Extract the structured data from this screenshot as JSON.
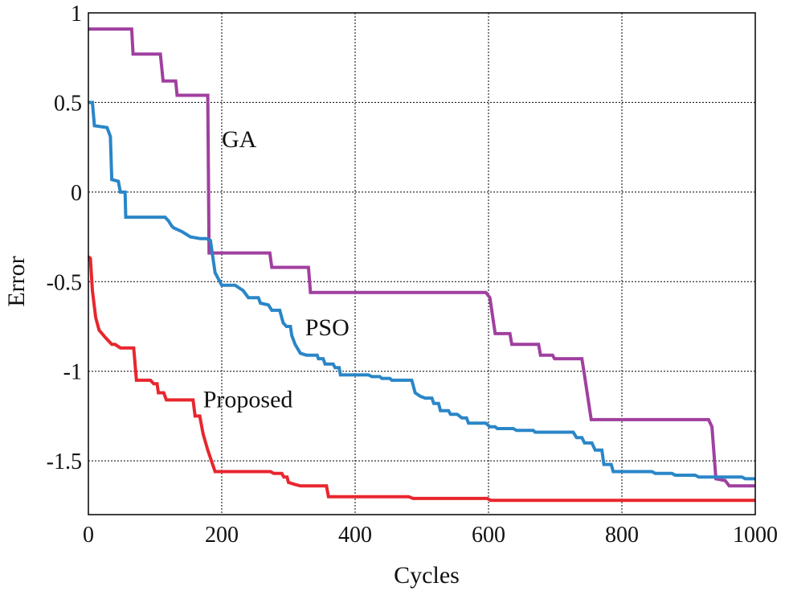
{
  "chart_data": {
    "type": "line",
    "title": "",
    "xlabel": "Cycles",
    "ylabel": "Error",
    "xlim": [
      0,
      1000
    ],
    "ylim": [
      -1.8,
      1
    ],
    "grid": true,
    "x_ticks": [
      0,
      200,
      400,
      600,
      800,
      1000
    ],
    "x_tick_labels": [
      "0",
      "200",
      "400",
      "600",
      "800",
      "1000"
    ],
    "y_ticks": [
      1,
      0.5,
      0,
      -0.5,
      -1,
      -1.5
    ],
    "y_tick_labels": [
      "1",
      "0.5",
      "0",
      "-0.5",
      "-1",
      "-1.5"
    ],
    "series": [
      {
        "name": "GA",
        "color": "#a0409f",
        "label_at": [
          200,
          0.25
        ],
        "points": [
          [
            0,
            0.91
          ],
          [
            65,
            0.91
          ],
          [
            67,
            0.77
          ],
          [
            108,
            0.77
          ],
          [
            112,
            0.62
          ],
          [
            131,
            0.62
          ],
          [
            133,
            0.54
          ],
          [
            179,
            0.54
          ],
          [
            181,
            -0.34
          ],
          [
            272,
            -0.34
          ],
          [
            275,
            -0.42
          ],
          [
            330,
            -0.42
          ],
          [
            333,
            -0.56
          ],
          [
            596,
            -0.56
          ],
          [
            602,
            -0.59
          ],
          [
            610,
            -0.79
          ],
          [
            632,
            -0.79
          ],
          [
            635,
            -0.85
          ],
          [
            675,
            -0.85
          ],
          [
            678,
            -0.91
          ],
          [
            696,
            -0.91
          ],
          [
            699,
            -0.93
          ],
          [
            740,
            -0.93
          ],
          [
            743,
            -1.0
          ],
          [
            754,
            -1.27
          ],
          [
            930,
            -1.27
          ],
          [
            935,
            -1.31
          ],
          [
            941,
            -1.6
          ],
          [
            955,
            -1.61
          ],
          [
            961,
            -1.64
          ],
          [
            1000,
            -1.64
          ]
        ]
      },
      {
        "name": "PSO",
        "color": "#2a86c8",
        "label_at": [
          325,
          -0.8
        ],
        "points": [
          [
            0,
            0.5
          ],
          [
            6,
            0.5
          ],
          [
            9,
            0.37
          ],
          [
            28,
            0.36
          ],
          [
            33,
            0.31
          ],
          [
            35,
            0.07
          ],
          [
            45,
            0.06
          ],
          [
            48,
            0.0
          ],
          [
            55,
            0.0
          ],
          [
            56,
            -0.14
          ],
          [
            115,
            -0.14
          ],
          [
            120,
            -0.16
          ],
          [
            125,
            -0.19
          ],
          [
            128,
            -0.2
          ],
          [
            140,
            -0.22
          ],
          [
            153,
            -0.25
          ],
          [
            168,
            -0.26
          ],
          [
            177,
            -0.26
          ],
          [
            183,
            -0.27
          ],
          [
            190,
            -0.45
          ],
          [
            200,
            -0.52
          ],
          [
            220,
            -0.52
          ],
          [
            232,
            -0.55
          ],
          [
            240,
            -0.59
          ],
          [
            255,
            -0.59
          ],
          [
            258,
            -0.62
          ],
          [
            270,
            -0.63
          ],
          [
            275,
            -0.66
          ],
          [
            287,
            -0.66
          ],
          [
            292,
            -0.73
          ],
          [
            297,
            -0.75
          ],
          [
            303,
            -0.75
          ],
          [
            305,
            -0.8
          ],
          [
            310,
            -0.85
          ],
          [
            318,
            -0.9
          ],
          [
            327,
            -0.91
          ],
          [
            343,
            -0.91
          ],
          [
            345,
            -0.93
          ],
          [
            352,
            -0.93
          ],
          [
            355,
            -0.96
          ],
          [
            367,
            -0.96
          ],
          [
            370,
            -0.98
          ],
          [
            376,
            -0.98
          ],
          [
            378,
            -1.02
          ],
          [
            420,
            -1.02
          ],
          [
            425,
            -1.03
          ],
          [
            437,
            -1.03
          ],
          [
            440,
            -1.04
          ],
          [
            452,
            -1.04
          ],
          [
            455,
            -1.05
          ],
          [
            485,
            -1.05
          ],
          [
            490,
            -1.12
          ],
          [
            498,
            -1.14
          ],
          [
            505,
            -1.15
          ],
          [
            515,
            -1.15
          ],
          [
            518,
            -1.18
          ],
          [
            525,
            -1.18
          ],
          [
            528,
            -1.22
          ],
          [
            540,
            -1.22
          ],
          [
            543,
            -1.24
          ],
          [
            553,
            -1.24
          ],
          [
            560,
            -1.26
          ],
          [
            567,
            -1.26
          ],
          [
            570,
            -1.29
          ],
          [
            596,
            -1.29
          ],
          [
            602,
            -1.31
          ],
          [
            610,
            -1.31
          ],
          [
            613,
            -1.32
          ],
          [
            637,
            -1.32
          ],
          [
            642,
            -1.33
          ],
          [
            667,
            -1.33
          ],
          [
            670,
            -1.34
          ],
          [
            727,
            -1.34
          ],
          [
            732,
            -1.37
          ],
          [
            740,
            -1.37
          ],
          [
            744,
            -1.4
          ],
          [
            755,
            -1.4
          ],
          [
            760,
            -1.44
          ],
          [
            770,
            -1.44
          ],
          [
            773,
            -1.52
          ],
          [
            784,
            -1.52
          ],
          [
            787,
            -1.56
          ],
          [
            845,
            -1.56
          ],
          [
            850,
            -1.57
          ],
          [
            875,
            -1.57
          ],
          [
            880,
            -1.58
          ],
          [
            910,
            -1.58
          ],
          [
            915,
            -1.59
          ],
          [
            980,
            -1.59
          ],
          [
            985,
            -1.6
          ],
          [
            1000,
            -1.6
          ]
        ]
      },
      {
        "name": "Proposed",
        "color": "#e8262e",
        "label_at": [
          172,
          -1.2
        ],
        "points": [
          [
            0,
            -0.36
          ],
          [
            3,
            -0.37
          ],
          [
            6,
            -0.55
          ],
          [
            11,
            -0.7
          ],
          [
            16,
            -0.77
          ],
          [
            25,
            -0.81
          ],
          [
            35,
            -0.85
          ],
          [
            40,
            -0.85
          ],
          [
            48,
            -0.87
          ],
          [
            68,
            -0.87
          ],
          [
            72,
            -1.05
          ],
          [
            93,
            -1.05
          ],
          [
            98,
            -1.07
          ],
          [
            103,
            -1.07
          ],
          [
            105,
            -1.12
          ],
          [
            113,
            -1.12
          ],
          [
            117,
            -1.16
          ],
          [
            157,
            -1.16
          ],
          [
            160,
            -1.25
          ],
          [
            167,
            -1.25
          ],
          [
            172,
            -1.35
          ],
          [
            179,
            -1.44
          ],
          [
            190,
            -1.56
          ],
          [
            273,
            -1.56
          ],
          [
            278,
            -1.57
          ],
          [
            290,
            -1.57
          ],
          [
            293,
            -1.59
          ],
          [
            298,
            -1.59
          ],
          [
            300,
            -1.62
          ],
          [
            308,
            -1.63
          ],
          [
            318,
            -1.64
          ],
          [
            357,
            -1.64
          ],
          [
            360,
            -1.7
          ],
          [
            480,
            -1.7
          ],
          [
            487,
            -1.71
          ],
          [
            598,
            -1.71
          ],
          [
            603,
            -1.72
          ],
          [
            1000,
            -1.72
          ]
        ]
      }
    ]
  }
}
